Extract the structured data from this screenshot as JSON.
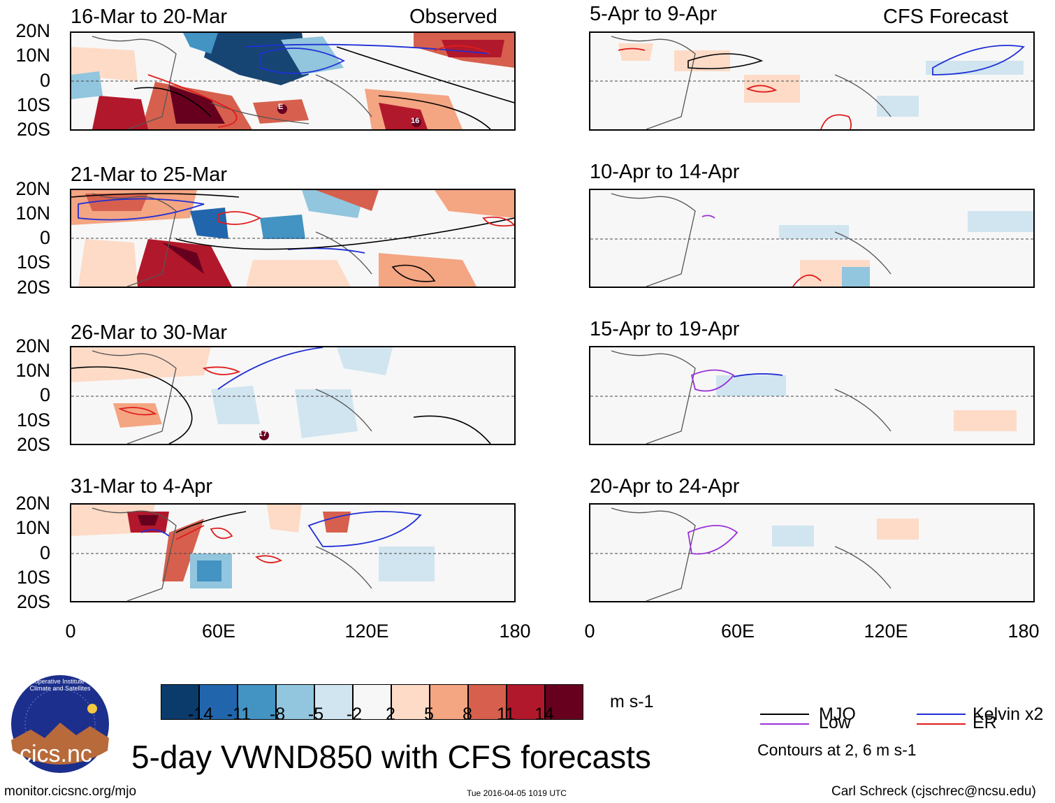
{
  "observed_label": "Observed",
  "forecast_label": "CFS Forecast",
  "observed_panels": [
    {
      "title": "16-Mar to 20-Mar"
    },
    {
      "title": "21-Mar to 25-Mar"
    },
    {
      "title": "26-Mar to 30-Mar"
    },
    {
      "title": "31-Mar to 4-Apr"
    }
  ],
  "forecast_panels": [
    {
      "title": "5-Apr to 9-Apr"
    },
    {
      "title": "10-Apr to 14-Apr"
    },
    {
      "title": "15-Apr to 19-Apr"
    },
    {
      "title": "20-Apr to 24-Apr"
    }
  ],
  "lat_ticks": [
    "20N",
    "10N",
    "0",
    "10S",
    "20S"
  ],
  "lon_ticks": [
    "0",
    "60E",
    "120E",
    "180"
  ],
  "storm_labels": [
    "E",
    "16",
    "17"
  ],
  "colorbar": {
    "colors": [
      "#0b3b6b",
      "#2166ac",
      "#4393c3",
      "#92c5de",
      "#d1e5f0",
      "#f7f7f7",
      "#fddbc7",
      "#f4a582",
      "#d6604d",
      "#b2182b",
      "#67001f"
    ],
    "ticks": [
      "-14",
      "-11",
      "-8",
      "-5",
      "-2",
      "2",
      "5",
      "8",
      "11",
      "14"
    ],
    "units": "m s-1"
  },
  "legend": {
    "mjo": {
      "label": "MJO",
      "color": "#000000"
    },
    "kelvin": {
      "label": "Kelvin x2",
      "color": "#1f2fd6"
    },
    "low": {
      "label": "Low",
      "color": "#9b30d9"
    },
    "er": {
      "label": "ER",
      "color": "#e01b1b"
    },
    "contours_note": "Contours at 2, 6 m s-1"
  },
  "main_title": "5-day VWND850 with CFS forecasts",
  "logo_text": "cics.nc",
  "logo_ring_text": "Cooperative Institute for Climate and Satellites",
  "footer": {
    "url": "monitor.cicsnc.org/mjo",
    "timestamp": "Tue 2016-04-05 1019 UTC",
    "author": "Carl Schreck (cjschrec@ncsu.edu)"
  }
}
